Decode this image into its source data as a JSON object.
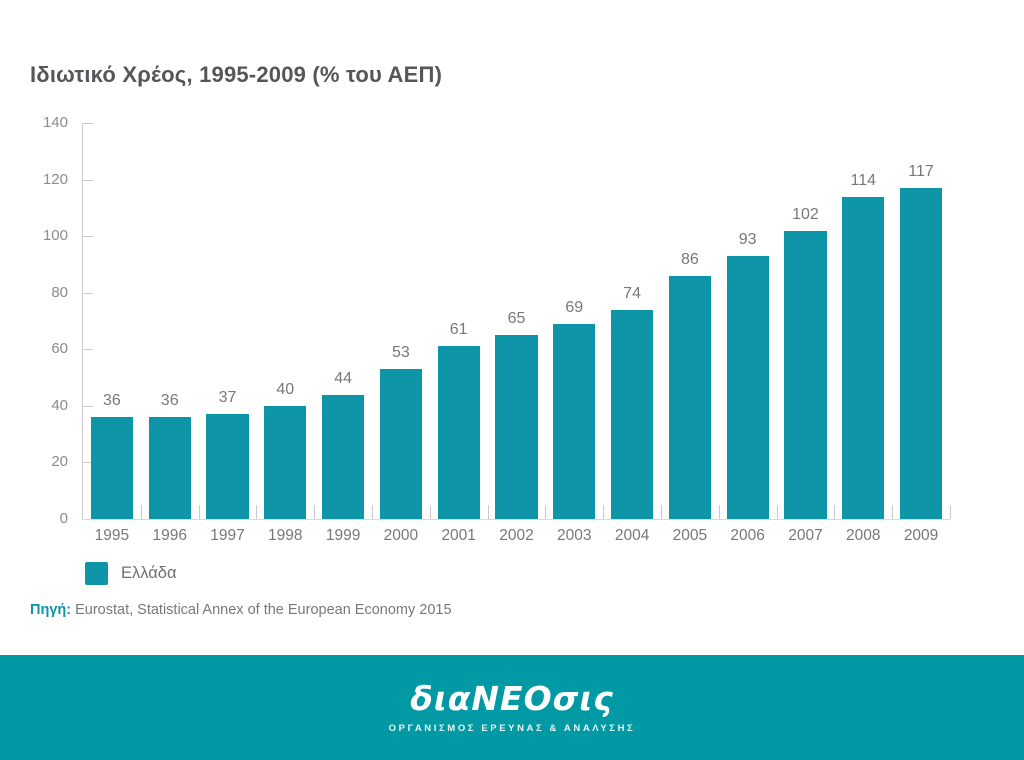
{
  "title": "Ιδιωτικό Χρέος, 1995-2009 (% του ΑΕΠ)",
  "chart_data": {
    "type": "bar",
    "title": "Ιδιωτικό Χρέος, 1995-2009 (% του ΑΕΠ)",
    "categories": [
      "1995",
      "1996",
      "1997",
      "1998",
      "1999",
      "2000",
      "2001",
      "2002",
      "2003",
      "2004",
      "2005",
      "2006",
      "2007",
      "2008",
      "2009"
    ],
    "series": [
      {
        "name": "Ελλάδα",
        "values": [
          36,
          36,
          37,
          40,
          44,
          53,
          61,
          65,
          69,
          74,
          86,
          93,
          102,
          114,
          117
        ]
      }
    ],
    "xlabel": "",
    "ylabel": "",
    "ylim": [
      0,
      140
    ],
    "yticks": [
      0,
      20,
      40,
      60,
      80,
      100,
      120,
      140
    ],
    "grid": false,
    "data_labels": true,
    "legend_position": "bottom-left"
  },
  "legend": {
    "label": "Ελλάδα"
  },
  "source": {
    "prefix": "Πηγή:",
    "text": "Eurostat, Statistical Annex of the European Economy 2015"
  },
  "footer": {
    "logo": "διαNEOσις",
    "tagline": "ΟΡΓΑΝΙΣΜΟΣ ΕΡΕΥΝΑΣ & ΑΝΑΛΥΣΗΣ"
  },
  "colors": {
    "bar": "#0E95A7",
    "footer_bg": "#0099A4",
    "title_text": "#55565A",
    "value_label_text": "#77787B",
    "axis_label_text": "#8A8B8E",
    "axis_line": "#CBCBCB",
    "source_prefix": "#0E95A7"
  }
}
